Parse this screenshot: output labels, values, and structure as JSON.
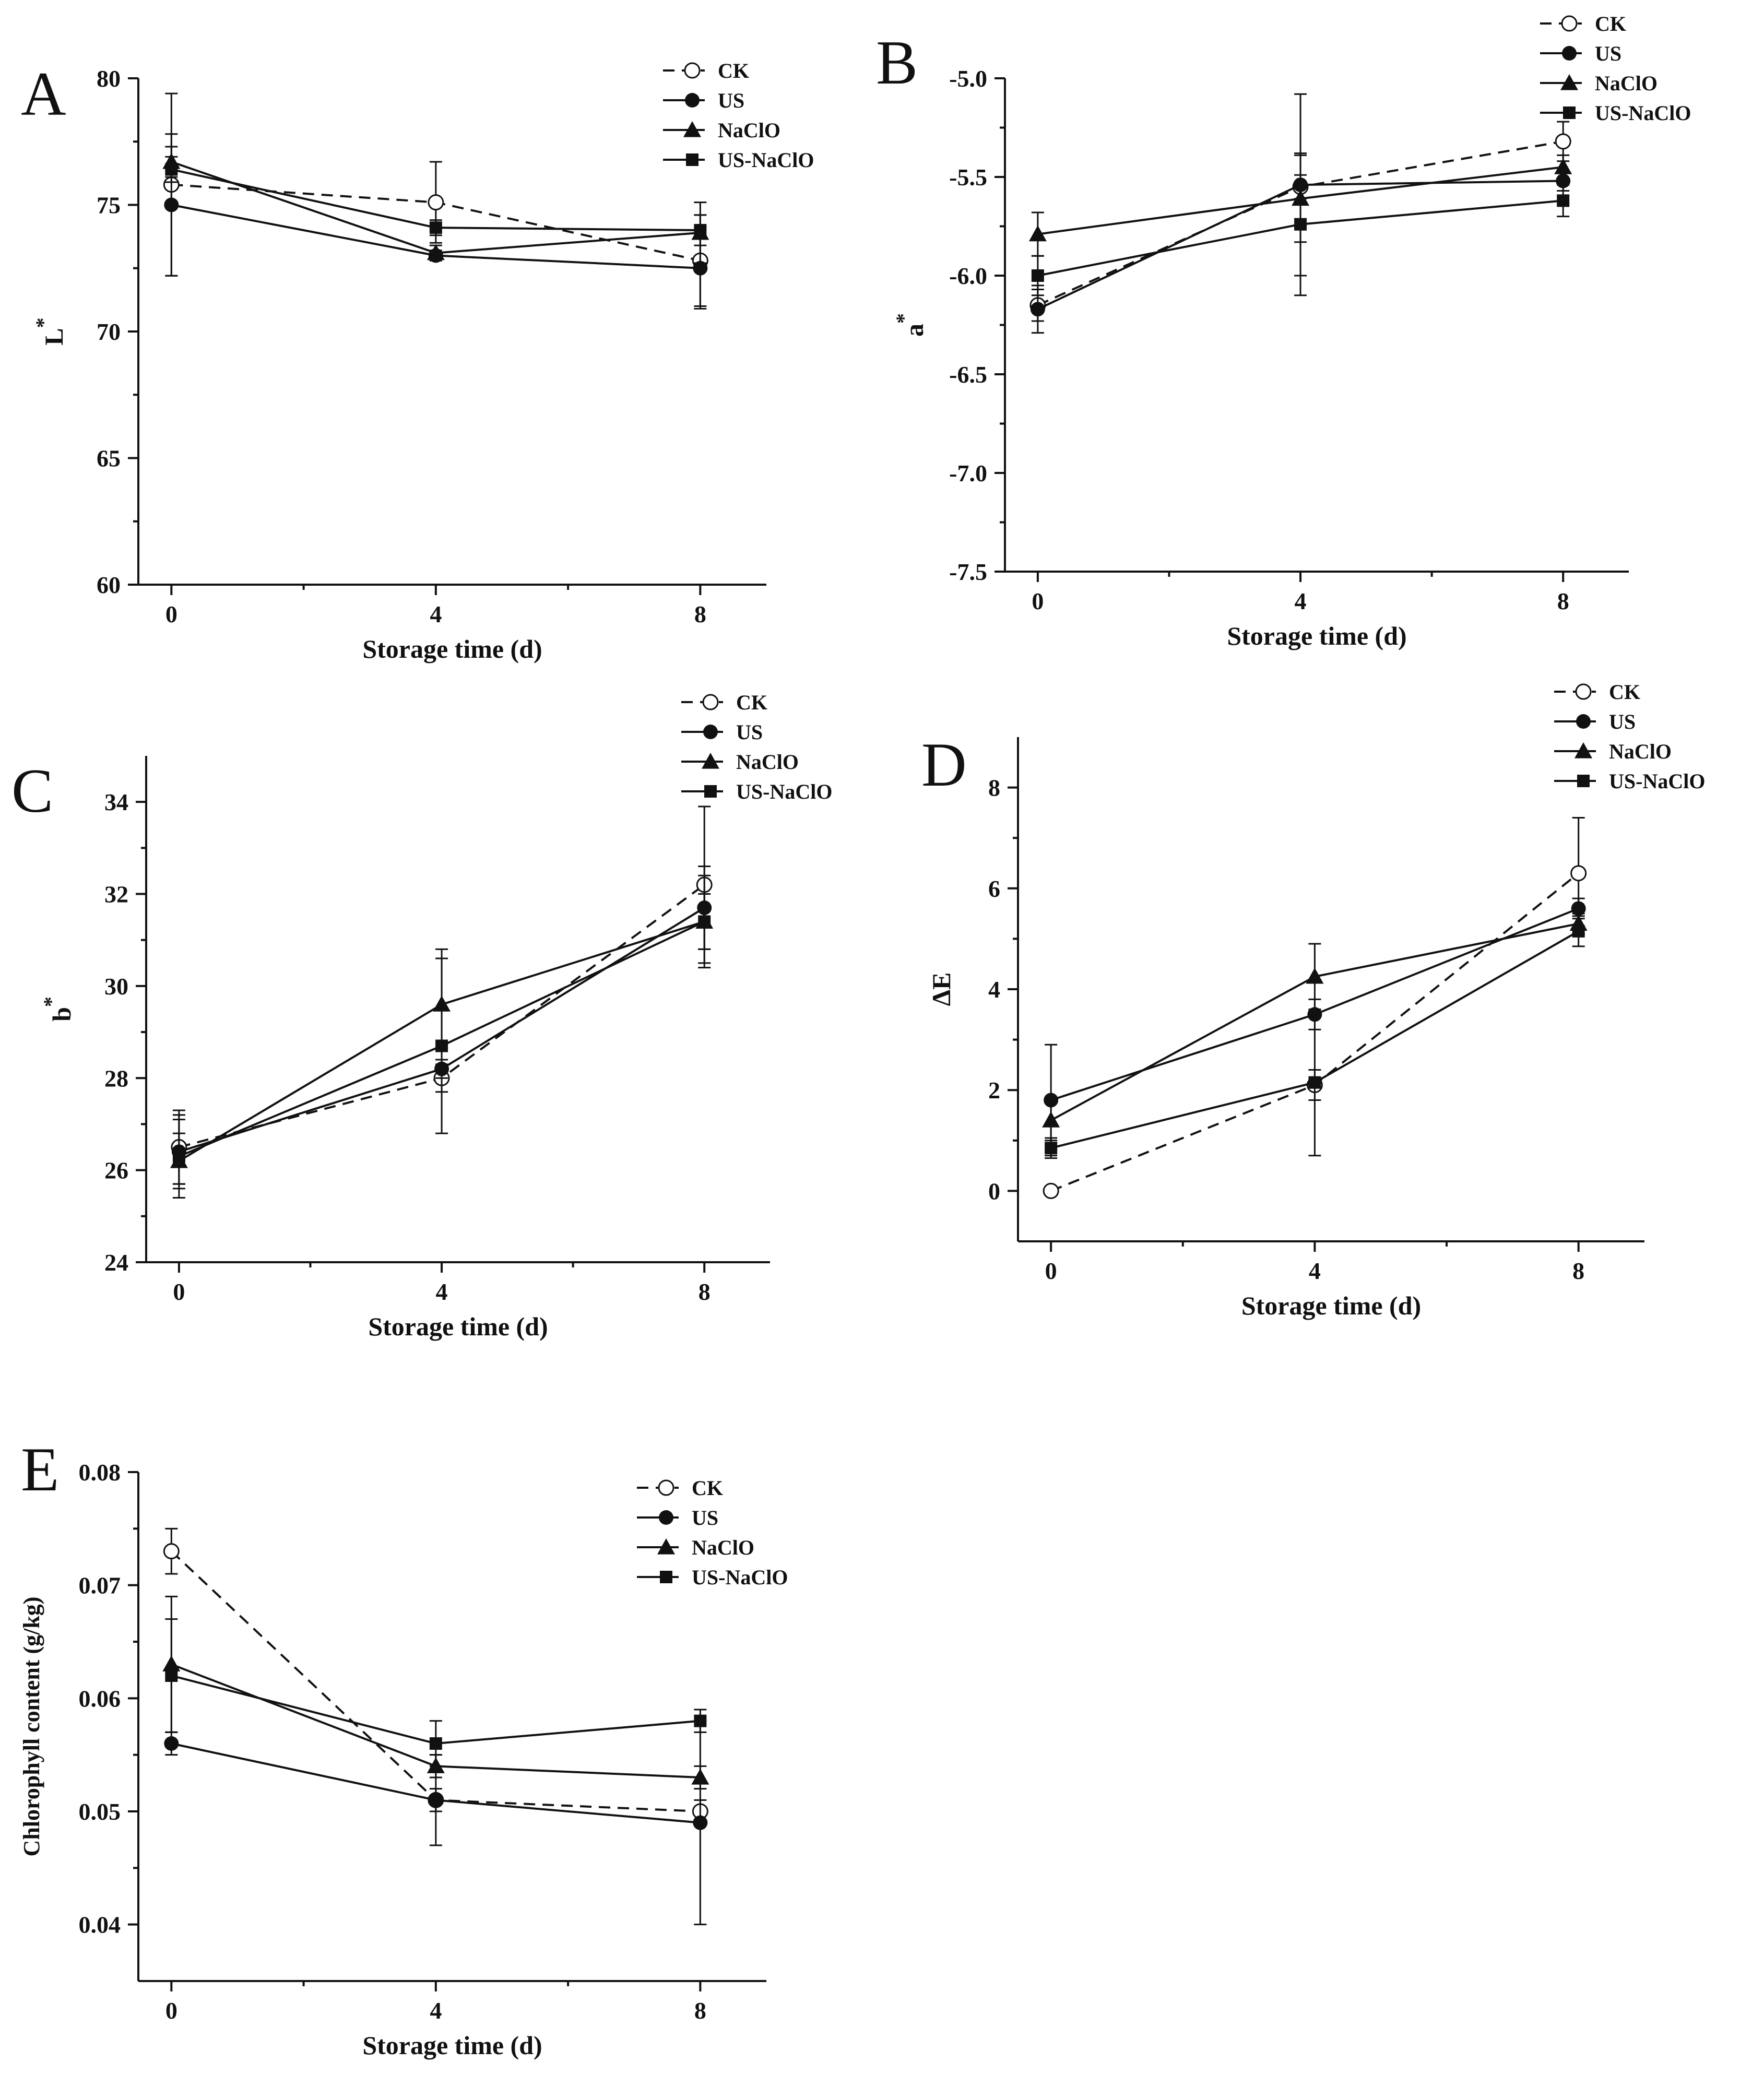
{
  "chart_data": [
    {
      "type": "line",
      "panel": "A",
      "xlabel": "Storage time (d)",
      "ylabel": "L",
      "ylabel_sup": "*",
      "x": [
        0,
        4,
        8
      ],
      "xticks": [
        "0",
        "4",
        "8"
      ],
      "ylim": [
        60,
        80
      ],
      "yticks": [
        60,
        65,
        70,
        75,
        80
      ],
      "legend_position": "top-right",
      "series": [
        {
          "name": "CK",
          "marker": "open-circle",
          "dashed": true,
          "values": [
            75.8,
            75.1,
            72.8
          ],
          "errors": [
            3.6,
            1.6,
            1.8
          ]
        },
        {
          "name": "US",
          "marker": "circle",
          "dashed": false,
          "values": [
            75.0,
            73.0,
            72.5
          ],
          "errors": [
            2.8,
            0.2,
            1.6
          ]
        },
        {
          "name": "NaClO",
          "marker": "triangle",
          "dashed": false,
          "values": [
            76.7,
            73.1,
            73.9
          ],
          "errors": [
            0.6,
            0.3,
            1.2
          ]
        },
        {
          "name": "US-NaClO",
          "marker": "square",
          "dashed": false,
          "values": [
            76.4,
            74.1,
            74.0
          ],
          "errors": [
            0.5,
            0.3,
            0.6
          ]
        }
      ]
    },
    {
      "type": "line",
      "panel": "B",
      "xlabel": "Storage time (d)",
      "ylabel": "a",
      "ylabel_sup": "*",
      "x": [
        0,
        4,
        8
      ],
      "xticks": [
        "0",
        "4",
        "8"
      ],
      "ylim": [
        -7.5,
        -5.0
      ],
      "yticks": [
        -7.5,
        -7.0,
        -6.5,
        -6.0,
        -5.5,
        -5.0
      ],
      "legend_position": "top-right",
      "series": [
        {
          "name": "CK",
          "marker": "open-circle",
          "dashed": true,
          "values": [
            -6.15,
            -5.55,
            -5.32
          ],
          "errors": [
            0.08,
            0.06,
            0.1
          ]
        },
        {
          "name": "US",
          "marker": "circle",
          "dashed": false,
          "values": [
            -6.17,
            -5.54,
            -5.52
          ],
          "errors": [
            0.12,
            0.46,
            0.05
          ]
        },
        {
          "name": "NaClO",
          "marker": "triangle",
          "dashed": false,
          "values": [
            -5.79,
            -5.61,
            -5.45
          ],
          "errors": [
            0.11,
            0.22,
            0.06
          ]
        },
        {
          "name": "US-NaClO",
          "marker": "square",
          "dashed": false,
          "values": [
            -6.0,
            -5.74,
            -5.62
          ],
          "errors": [
            0.1,
            0.36,
            0.08
          ]
        }
      ]
    },
    {
      "type": "line",
      "panel": "C",
      "xlabel": "Storage time (d)",
      "ylabel": "b",
      "ylabel_sup": "*",
      "x": [
        0,
        4,
        8
      ],
      "xticks": [
        "0",
        "4",
        "8"
      ],
      "ylim": [
        24,
        35
      ],
      "yticks": [
        24,
        26,
        28,
        30,
        32,
        34
      ],
      "legend_position": "top-right",
      "series": [
        {
          "name": "CK",
          "marker": "open-circle",
          "dashed": true,
          "values": [
            26.5,
            28.0,
            32.2
          ],
          "errors": [
            0.8,
            0.3,
            1.7
          ]
        },
        {
          "name": "US",
          "marker": "circle",
          "dashed": false,
          "values": [
            26.4,
            28.2,
            31.7
          ],
          "errors": [
            0.7,
            0.2,
            0.9
          ]
        },
        {
          "name": "NaClO",
          "marker": "triangle",
          "dashed": false,
          "values": [
            26.2,
            29.6,
            31.4
          ],
          "errors": [
            0.6,
            1.2,
            0.6
          ]
        },
        {
          "name": "US-NaClO",
          "marker": "square",
          "dashed": false,
          "values": [
            26.3,
            28.7,
            31.4
          ],
          "errors": [
            0.9,
            1.9,
            1.0
          ]
        }
      ]
    },
    {
      "type": "line",
      "panel": "D",
      "xlabel": "Storage time (d)",
      "ylabel": "ΔE",
      "ylabel_sup": "",
      "x": [
        0,
        4,
        8
      ],
      "xticks": [
        "0",
        "4",
        "8"
      ],
      "ylim": [
        -1,
        9
      ],
      "yticks": [
        0,
        2,
        4,
        6,
        8
      ],
      "legend_position": "top-right",
      "series": [
        {
          "name": "CK",
          "marker": "open-circle",
          "dashed": true,
          "values": [
            0.0,
            2.1,
            6.3
          ],
          "errors": [
            0.0,
            0.3,
            1.1
          ]
        },
        {
          "name": "US",
          "marker": "circle",
          "dashed": false,
          "values": [
            1.8,
            3.5,
            5.6
          ],
          "errors": [
            1.1,
            0.3,
            0.2
          ]
        },
        {
          "name": "NaClO",
          "marker": "triangle",
          "dashed": false,
          "values": [
            1.4,
            4.25,
            5.3
          ],
          "errors": [
            0.4,
            0.65,
            0.2
          ]
        },
        {
          "name": "US-NaClO",
          "marker": "square",
          "dashed": false,
          "values": [
            0.85,
            2.15,
            5.15
          ],
          "errors": [
            0.2,
            1.45,
            0.3
          ]
        }
      ]
    },
    {
      "type": "line",
      "panel": "E",
      "xlabel": "Storage time (d)",
      "ylabel": "Chlorophyll content (g/kg)",
      "ylabel_sup": "",
      "x": [
        0,
        4,
        8
      ],
      "xticks": [
        "0",
        "4",
        "8"
      ],
      "ylim": [
        0.035,
        0.08
      ],
      "yticks": [
        0.04,
        0.05,
        0.06,
        0.07,
        0.08
      ],
      "ytick_labels": [
        "0.04",
        "0.05",
        "0.06",
        "0.07",
        "0.08"
      ],
      "legend_position": "top-right",
      "series": [
        {
          "name": "CK",
          "marker": "open-circle",
          "dashed": true,
          "values": [
            0.073,
            0.051,
            0.05
          ],
          "errors": [
            0.002,
            0.001,
            0.001
          ]
        },
        {
          "name": "US",
          "marker": "circle",
          "dashed": false,
          "values": [
            0.056,
            0.051,
            0.049
          ],
          "errors": [
            0.001,
            0.004,
            0.009
          ]
        },
        {
          "name": "NaClO",
          "marker": "triangle",
          "dashed": false,
          "values": [
            0.063,
            0.054,
            0.053
          ],
          "errors": [
            0.006,
            0.001,
            0.001
          ]
        },
        {
          "name": "US-NaClO",
          "marker": "square",
          "dashed": false,
          "values": [
            0.062,
            0.056,
            0.058
          ],
          "errors": [
            0.005,
            0.002,
            0.001
          ]
        }
      ]
    }
  ]
}
